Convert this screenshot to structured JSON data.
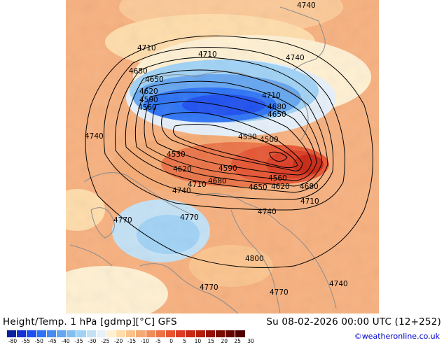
{
  "map": {
    "contour_labels": [
      "4740",
      "4710",
      "4710",
      "4740",
      "4680",
      "4650",
      "4620",
      "4590",
      "4560",
      "4710",
      "4680",
      "4650",
      "4740",
      "4530",
      "4500",
      "4530",
      "4620",
      "4590",
      "4560",
      "4620",
      "4680",
      "4710",
      "4680",
      "4650",
      "4740",
      "4710",
      "4770",
      "4770",
      "4740",
      "4800",
      "4770",
      "4770",
      "4740"
    ]
  },
  "footer": {
    "title_left": "Height/Temp. 1 hPa [gdmp][°C] GFS",
    "title_right": "Su 08-02-2026 00:00 UTC (12+252)",
    "credit": "©weatheronline.co.uk",
    "colorbar": {
      "colors": [
        "#0a1ea0",
        "#1432d2",
        "#1e50f0",
        "#2d73f5",
        "#468cf0",
        "#64a5f0",
        "#82bef0",
        "#a0d2f5",
        "#c3e1f5",
        "#e6f0fa",
        "#fff0d2",
        "#ffdcaa",
        "#fbc38c",
        "#f5aa73",
        "#f08c5a",
        "#eb7346",
        "#e65532",
        "#dc3c23",
        "#c82814",
        "#b41e0a",
        "#960f05",
        "#780a00",
        "#640500",
        "#500000"
      ],
      "ticks": [
        "-80",
        "-55",
        "-50",
        "-45",
        "-40",
        "-35",
        "-30",
        "-25",
        "-20",
        "-15",
        "-10",
        "-5",
        "0",
        "5",
        "10",
        "15",
        "20",
        "25",
        "30"
      ]
    }
  }
}
